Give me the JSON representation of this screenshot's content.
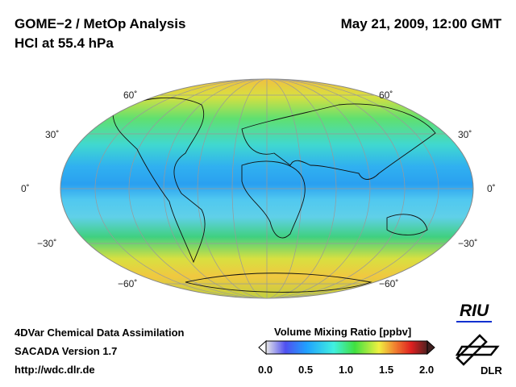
{
  "header": {
    "title": "GOME−2 / MetOp Analysis",
    "subtitle": "HCl at 55.4 hPa",
    "date": "May 21, 2009, 12:00 GMT"
  },
  "lat_labels": {
    "n60": "60˚",
    "n30": "30˚",
    "eq": "0˚",
    "s30": "−30˚",
    "s60": "−60˚"
  },
  "footer": {
    "line1": "4DVar Chemical Data Assimilation",
    "line2": "SACADA Version 1.7",
    "line3": "http://wdc.dlr.de"
  },
  "colorbar": {
    "title": "Volume Mixing Ratio [ppbv]",
    "ticks": [
      "0.0",
      "0.5",
      "1.0",
      "1.5",
      "2.0"
    ],
    "min": 0,
    "max": 2
  },
  "logos": {
    "riu": "RIU",
    "dlr": "DLR"
  }
}
